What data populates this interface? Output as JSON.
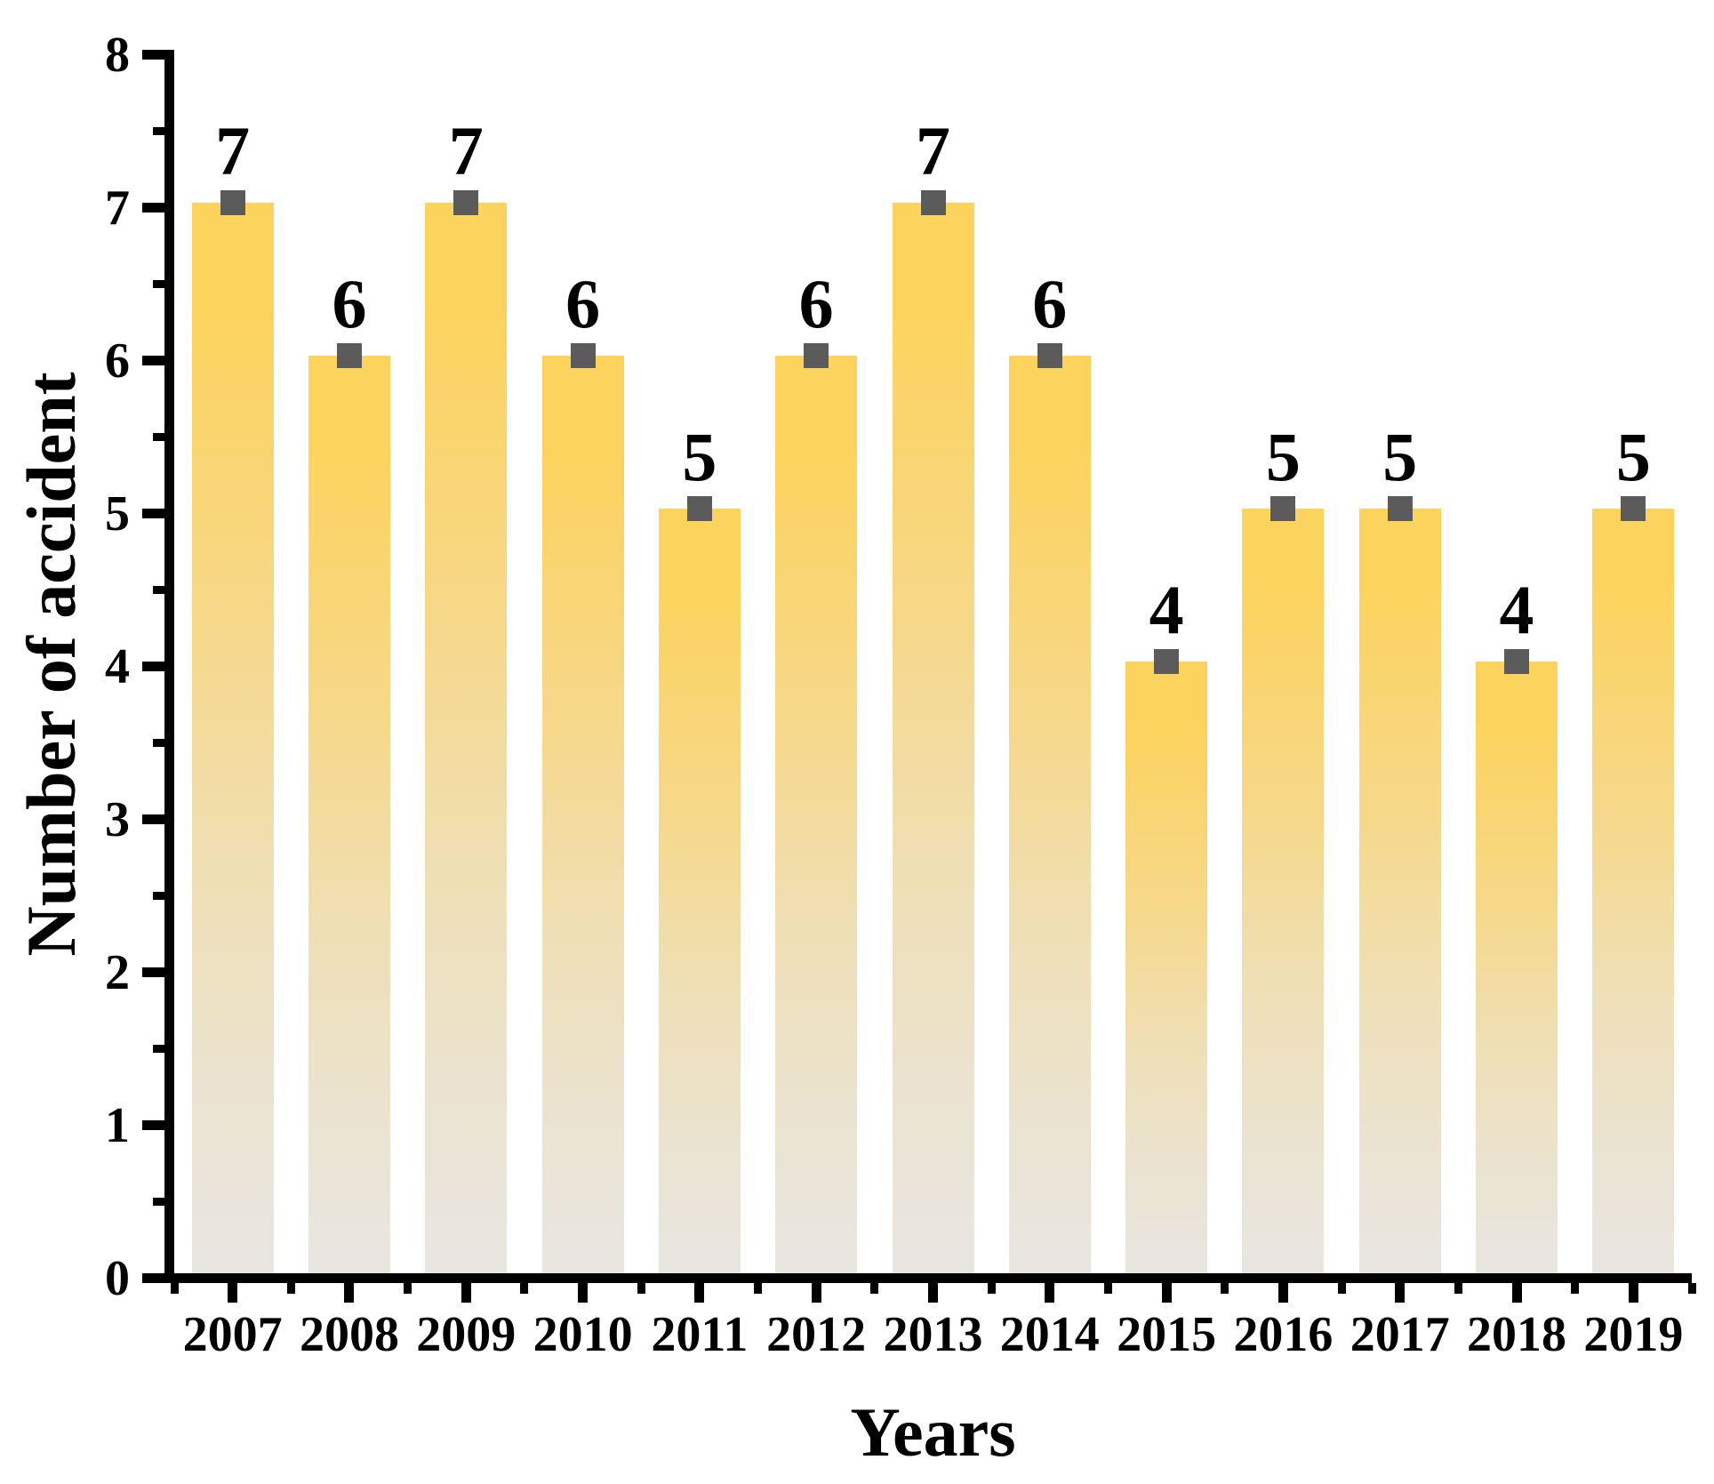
{
  "chart_data": {
    "type": "bar",
    "title": "",
    "xlabel": "Years",
    "ylabel": "Number of accident",
    "categories": [
      "2007",
      "2008",
      "2009",
      "2010",
      "2011",
      "2012",
      "2013",
      "2014",
      "2015",
      "2016",
      "2017",
      "2018",
      "2019"
    ],
    "values": [
      7,
      6,
      7,
      6,
      5,
      6,
      7,
      6,
      4,
      5,
      5,
      4,
      5
    ],
    "value_labels": [
      "7",
      "6",
      "7",
      "6",
      "5",
      "6",
      "7",
      "6",
      "4",
      "5",
      "5",
      "4",
      "5"
    ],
    "ylim": [
      0,
      8
    ],
    "y_major_ticks": [
      "0",
      "1",
      "2",
      "3",
      "4",
      "5",
      "6",
      "7",
      "8"
    ],
    "y_minor_tick_step": 0.5,
    "x_minor_ticks_at_category_boundaries": true,
    "grid": false,
    "legend": "none",
    "colors": {
      "bar_gradient_top": "#FCD35C",
      "bar_gradient_bottom": "#E9E6E2",
      "marker": "#5B5B5B",
      "axis": "#000000",
      "text": "#000000",
      "background": "#FFFFFF"
    },
    "marker_shape": "square"
  }
}
